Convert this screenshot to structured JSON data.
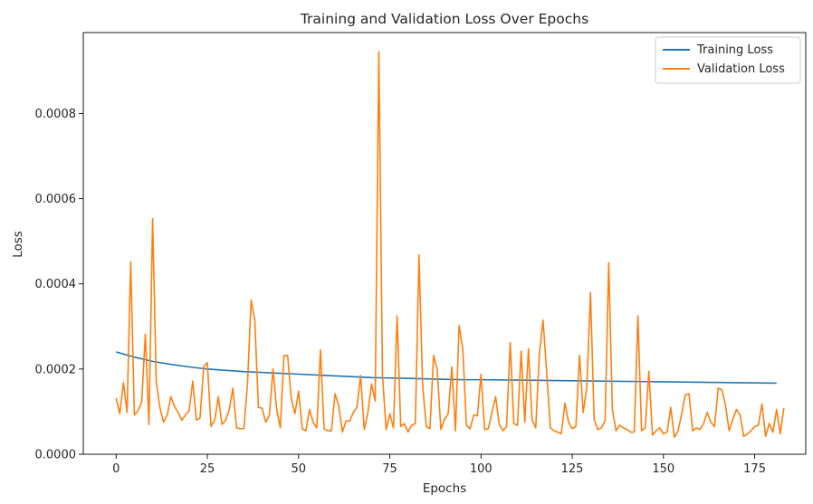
{
  "chart_data": {
    "type": "line",
    "title": "Training and Validation Loss Over Epochs",
    "xlabel": "Epochs",
    "ylabel": "Loss",
    "xlim": [
      -9,
      189
    ],
    "ylim": [
      0,
      0.00099
    ],
    "x_ticks": [
      0,
      25,
      50,
      75,
      100,
      125,
      150,
      175
    ],
    "y_ticks": [
      0.0,
      0.0002,
      0.0004,
      0.0006,
      0.0008
    ],
    "y_tick_labels": [
      "0.0000",
      "0.0002",
      "0.0004",
      "0.0006",
      "0.0008"
    ],
    "grid": false,
    "legend_position": "top-right",
    "series": [
      {
        "name": "Training Loss",
        "color": "#1f77b4",
        "anchors": [
          [
            0,
            0.00024
          ],
          [
            5,
            0.000228
          ],
          [
            10,
            0.000218
          ],
          [
            15,
            0.000211
          ],
          [
            20,
            0.000205
          ],
          [
            25,
            0.0002
          ],
          [
            30,
            0.000197
          ],
          [
            35,
            0.000194
          ],
          [
            40,
            0.000192
          ],
          [
            45,
            0.00019
          ],
          [
            50,
            0.000188
          ],
          [
            55,
            0.000186
          ],
          [
            60,
            0.000184
          ],
          [
            65,
            0.000182
          ],
          [
            70,
            0.00018
          ],
          [
            75,
            0.000179
          ],
          [
            80,
            0.000178
          ],
          [
            85,
            0.000177
          ],
          [
            90,
            0.000176
          ],
          [
            95,
            0.000175
          ],
          [
            100,
            0.000175
          ],
          [
            110,
            0.000174
          ],
          [
            120,
            0.000173
          ],
          [
            130,
            0.000172
          ],
          [
            140,
            0.000171
          ],
          [
            150,
            0.00017
          ],
          [
            160,
            0.000169
          ],
          [
            170,
            0.000168
          ],
          [
            181,
            0.000167
          ]
        ]
      },
      {
        "name": "Validation Loss",
        "color": "#ff7f0e",
        "values": [
          0.000132,
          9.5e-05,
          0.000168,
          9.8e-05,
          0.000452,
          9.2e-05,
          0.000102,
          0.000122,
          0.000282,
          7e-05,
          0.000553,
          0.00017,
          0.00011,
          7.5e-05,
          9.2e-05,
          0.000135,
          0.000112,
          9.8e-05,
          8e-05,
          9.2e-05,
          0.000102,
          0.000172,
          8e-05,
          8.5e-05,
          0.000205,
          0.000215,
          6.5e-05,
          8e-05,
          0.000135,
          7e-05,
          8e-05,
          0.000105,
          0.000155,
          6.2e-05,
          6e-05,
          6e-05,
          0.000165,
          0.000362,
          0.000315,
          0.00011,
          0.000108,
          7.5e-05,
          9.2e-05,
          0.0002,
          0.000105,
          6.2e-05,
          0.000232,
          0.000232,
          0.00013,
          9.5e-05,
          0.000148,
          6e-05,
          5.5e-05,
          0.000105,
          7.5e-05,
          6.2e-05,
          0.000245,
          6e-05,
          5.5e-05,
          5.5e-05,
          0.000142,
          0.000115,
          5.2e-05,
          7.8e-05,
          7.8e-05,
          9.8e-05,
          0.00011,
          0.000185,
          5.8e-05,
          9.8e-05,
          0.000165,
          0.000125,
          0.000945,
          0.000185,
          5.8e-05,
          9.5e-05,
          6.2e-05,
          0.000325,
          6.5e-05,
          7.2e-05,
          5.2e-05,
          6.8e-05,
          7.2e-05,
          0.000468,
          0.000162,
          6.5e-05,
          6e-05,
          0.000232,
          0.000198,
          5.8e-05,
          8.2e-05,
          9.5e-05,
          0.000205,
          5.5e-05,
          0.000302,
          0.000248,
          6.8e-05,
          6e-05,
          9.2e-05,
          9e-05,
          0.000188,
          5.8e-05,
          6e-05,
          9.8e-05,
          0.000135,
          7e-05,
          5.5e-05,
          6.5e-05,
          0.000262,
          7.2e-05,
          6.8e-05,
          0.000242,
          7.5e-05,
          0.000248,
          8e-05,
          6.2e-05,
          0.000235,
          0.000315,
          0.000192,
          6.2e-05,
          5.5e-05,
          5.2e-05,
          4.8e-05,
          0.00012,
          7.5e-05,
          6e-05,
          6.5e-05,
          0.000232,
          9.8e-05,
          0.000158,
          0.00038,
          8.2e-05,
          5.8e-05,
          6.2e-05,
          7.8e-05,
          0.00045,
          0.000105,
          5.5e-05,
          6.8e-05,
          6.2e-05,
          5.8e-05,
          5.2e-05,
          5.2e-05,
          0.000325,
          5.5e-05,
          6.2e-05,
          0.000195,
          4.5e-05,
          5.5e-05,
          6.2e-05,
          4.8e-05,
          5.2e-05,
          0.00011,
          4e-05,
          5.5e-05,
          9.5e-05,
          0.00014,
          0.000142,
          5.5e-05,
          6.2e-05,
          5.8e-05,
          7.2e-05,
          9.8e-05,
          7.5e-05,
          6.5e-05,
          0.000155,
          0.000152,
          0.000115,
          5.5e-05,
          8.2e-05,
          0.000105,
          9.2e-05,
          4.2e-05,
          4.8e-05,
          5.5e-05,
          6.5e-05,
          6.8e-05,
          0.000118,
          4.2e-05,
          7.2e-05,
          5.2e-05,
          0.000105,
          4.8e-05,
          0.000108
        ]
      }
    ]
  }
}
